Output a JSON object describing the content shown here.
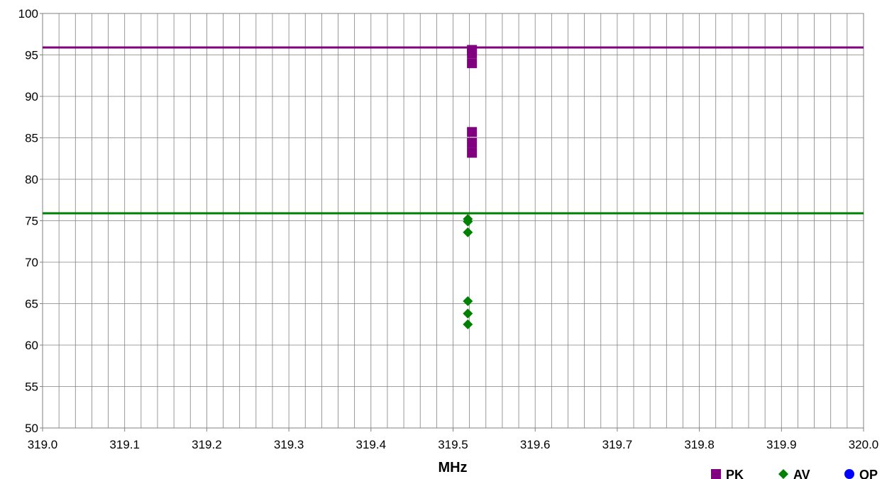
{
  "chart_data": {
    "type": "scatter",
    "title": "",
    "xlabel": "MHz",
    "ylabel": "",
    "xlim": [
      319.0,
      320.0
    ],
    "ylim": [
      50,
      100
    ],
    "x_ticks": [
      "319.0",
      "319.1",
      "319.2",
      "319.3",
      "319.4",
      "319.5",
      "319.6",
      "319.7",
      "319.8",
      "319.9",
      "320.0"
    ],
    "y_ticks": [
      "50",
      "55",
      "60",
      "65",
      "70",
      "75",
      "80",
      "85",
      "90",
      "95",
      "100"
    ],
    "grid": true,
    "x_minor_step": 0.02,
    "legend_placement": "bottom-right",
    "limit_lines": [
      {
        "value": 95.9,
        "color": "#800080"
      },
      {
        "value": 75.9,
        "color": "#008000"
      }
    ],
    "series": [
      {
        "name": "PK",
        "marker": "square",
        "color": "#800080",
        "points": [
          [
            319.523,
            95.6
          ],
          [
            319.523,
            95.2
          ],
          [
            319.523,
            94.0
          ],
          [
            319.523,
            85.7
          ],
          [
            319.523,
            84.4
          ],
          [
            319.523,
            83.2
          ]
        ]
      },
      {
        "name": "AV",
        "marker": "diamond",
        "color": "#008000",
        "points": [
          [
            319.518,
            75.2
          ],
          [
            319.518,
            74.9
          ],
          [
            319.518,
            73.6
          ],
          [
            319.518,
            65.3
          ],
          [
            319.518,
            63.8
          ],
          [
            319.518,
            62.5
          ]
        ]
      },
      {
        "name": "QP",
        "marker": "circle",
        "color": "#0000ff",
        "points": []
      }
    ]
  }
}
